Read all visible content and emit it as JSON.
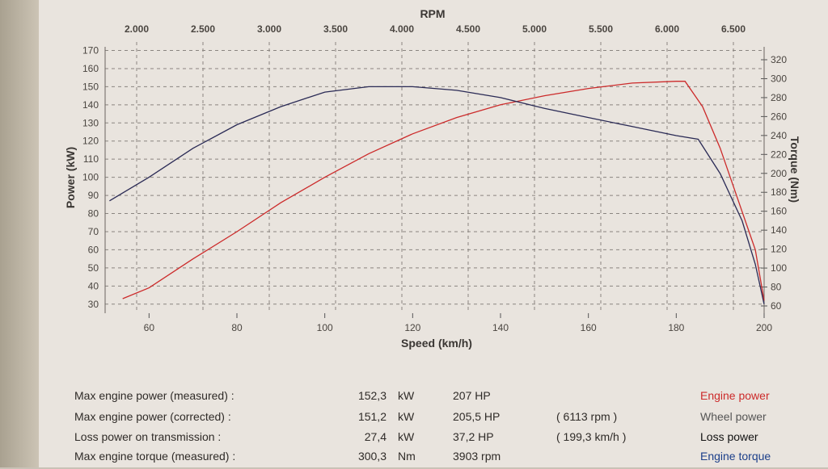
{
  "chart_data": {
    "type": "line",
    "title": "",
    "x_label": "Speed (km/h)",
    "x_ticks": [
      60,
      80,
      100,
      120,
      140,
      160,
      180,
      200
    ],
    "xlim": [
      50,
      200
    ],
    "top_label": "RPM",
    "rpm_ticks": [
      "2.000",
      "2.500",
      "3.000",
      "3.500",
      "4.000",
      "4.500",
      "5.000",
      "5.500",
      "6.000",
      "6.500"
    ],
    "y_left_label": "Power (kW)",
    "y_left_ticks": [
      30,
      40,
      50,
      60,
      70,
      80,
      90,
      100,
      110,
      120,
      130,
      140,
      150,
      160,
      170
    ],
    "y_left_lim": [
      25,
      172
    ],
    "y_right_label": "Torque (Nm)",
    "y_right_ticks": [
      60,
      80,
      100,
      120,
      140,
      160,
      180,
      200,
      220,
      240,
      260,
      280,
      300,
      320
    ],
    "grid": true,
    "series": [
      {
        "name": "Engine power",
        "color": "#cc2a2a",
        "axis": "left",
        "x": [
          54,
          60,
          70,
          80,
          90,
          100,
          110,
          120,
          130,
          140,
          150,
          160,
          170,
          180,
          182,
          186,
          190,
          194,
          198,
          200
        ],
        "y": [
          33,
          39,
          55,
          70,
          86,
          100,
          113,
          124,
          133,
          140,
          145,
          149,
          152,
          153,
          153,
          139,
          116,
          88,
          60,
          32
        ]
      },
      {
        "name": "Engine torque",
        "color": "#2a2a55",
        "axis": "left",
        "x": [
          51,
          60,
          70,
          80,
          90,
          100,
          110,
          120,
          130,
          140,
          150,
          160,
          170,
          180,
          185,
          190,
          195,
          198,
          200
        ],
        "y": [
          87,
          100,
          116,
          129,
          139,
          147,
          150,
          150,
          148,
          144,
          138,
          133,
          128,
          123,
          121,
          102,
          76,
          52,
          30
        ]
      }
    ]
  },
  "stats": [
    {
      "label": "Max engine power (measured) :",
      "value": "152,3",
      "unit": "kW",
      "hp": "207 HP",
      "extra": "",
      "legend": "Engine power",
      "legend_color": "#cc2a2a"
    },
    {
      "label": "Max engine power (corrected) :",
      "value": "151,2",
      "unit": "kW",
      "hp": "205,5 HP",
      "extra": "( 6113 rpm )",
      "legend": "Wheel power",
      "legend_color": "#555555"
    },
    {
      "label": "Loss power on transmission :",
      "value": "27,4",
      "unit": "kW",
      "hp": "37,2 HP",
      "extra": "( 199,3 km/h )",
      "legend": "Loss power",
      "legend_color": "#111111"
    },
    {
      "label": "Max engine torque (measured) :",
      "value": "300,3",
      "unit": "Nm",
      "hp": "3903 rpm",
      "extra": "",
      "legend": "Engine torque",
      "legend_color": "#1c3f8a"
    }
  ]
}
